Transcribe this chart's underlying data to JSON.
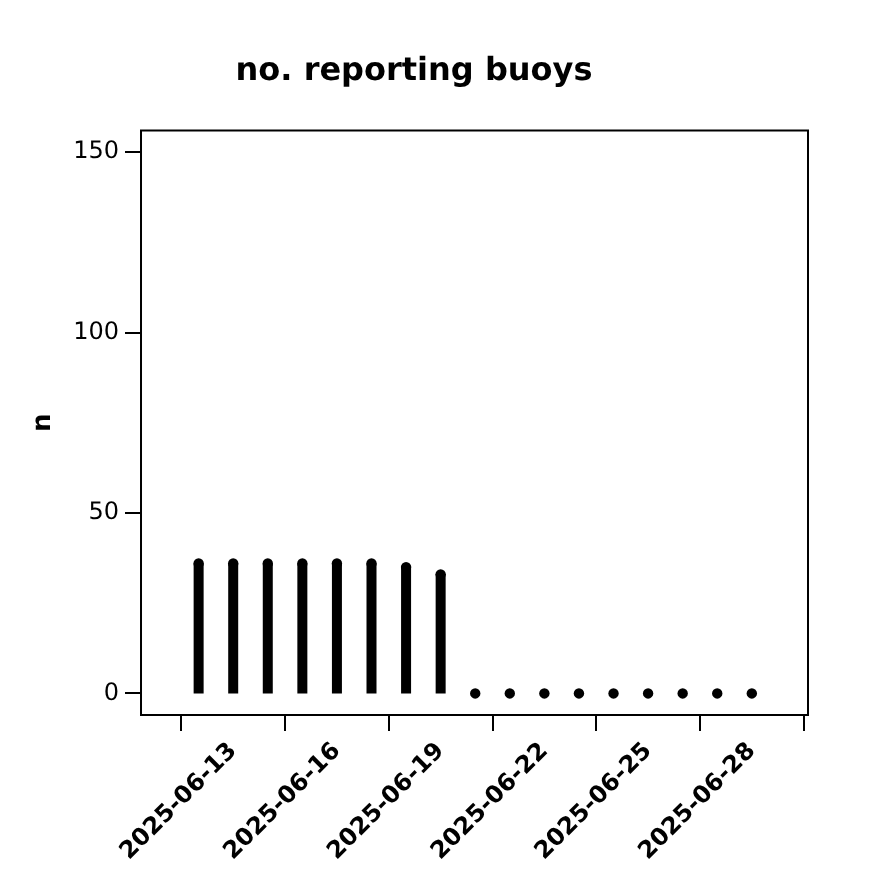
{
  "chart_data": {
    "type": "lollipop",
    "marker": "circle",
    "title": "no. reporting buoys",
    "ylabel": "n",
    "x": [
      "2025-06-12",
      "2025-06-13",
      "2025-06-14",
      "2025-06-15",
      "2025-06-16",
      "2025-06-17",
      "2025-06-18",
      "2025-06-19",
      "2025-06-20",
      "2025-06-21",
      "2025-06-22",
      "2025-06-23",
      "2025-06-24",
      "2025-06-25",
      "2025-06-26",
      "2025-06-27",
      "2025-06-28"
    ],
    "values": [
      36,
      36,
      36,
      36,
      36,
      36,
      35,
      33,
      0,
      0,
      0,
      0,
      0,
      0,
      0,
      0,
      0
    ],
    "color": "#000000",
    "xlim": [
      "2025-06-10T08:00",
      "2025-06-29T15:00"
    ],
    "xticks": [
      "2025-06-13",
      "2025-06-16",
      "2025-06-19",
      "2025-06-22",
      "2025-06-25",
      "2025-06-28"
    ],
    "ylim": [
      -6,
      156
    ],
    "yticks": [
      0,
      50,
      100,
      150
    ]
  }
}
